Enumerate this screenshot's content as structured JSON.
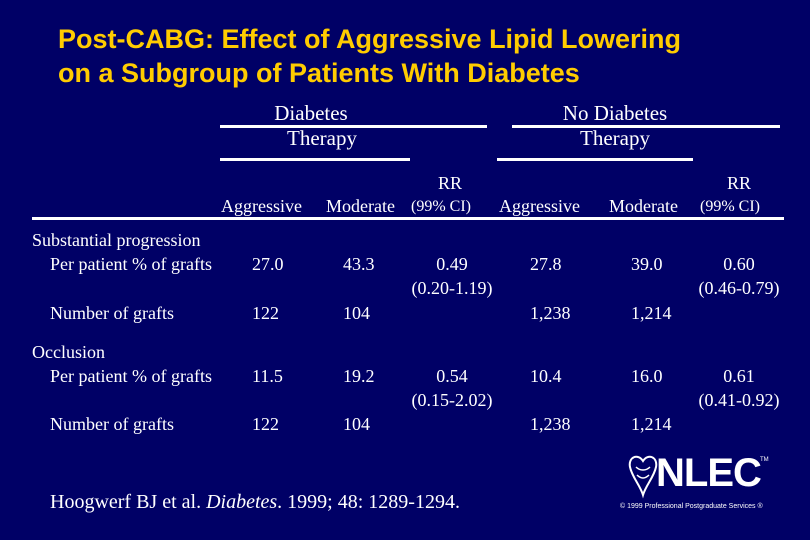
{
  "title": {
    "line1": "Post-CABG: Effect of Aggressive Lipid Lowering",
    "line2": "on a Subgroup of Patients With Diabetes"
  },
  "groups": {
    "diabetes": {
      "line1": "Diabetes",
      "line2": "Therapy"
    },
    "no_diabetes": {
      "line1": "No Diabetes",
      "line2": "Therapy"
    }
  },
  "columns": {
    "rr": "RR",
    "aggressive": "Aggressive",
    "moderate": "Moderate",
    "ci": "(99% CI)"
  },
  "sections": {
    "progression": "Substantial progression",
    "occlusion": "Occlusion"
  },
  "rows": [
    {
      "label": "Per patient % of grafts",
      "d_agg": "27.0",
      "d_mod": "43.3",
      "d_rr": "0.49",
      "d_ci": "(0.20-1.19)",
      "n_agg": "27.8",
      "n_mod": "39.0",
      "n_rr": "0.60",
      "n_ci": "(0.46-0.79)"
    },
    {
      "label": "Number of grafts",
      "d_agg": "122",
      "d_mod": "104",
      "n_agg": "1,238",
      "n_mod": "1,214"
    },
    {
      "label": "Per patient % of grafts",
      "d_agg": "11.5",
      "d_mod": "19.2",
      "d_rr": "0.54",
      "d_ci": "(0.15-2.02)",
      "n_agg": "10.4",
      "n_mod": "16.0",
      "n_rr": "0.61",
      "n_ci": "(0.41-0.92)"
    },
    {
      "label": "Number of grafts",
      "d_agg": "122",
      "d_mod": "104",
      "n_agg": "1,238",
      "n_mod": "1,214"
    }
  ],
  "citation": {
    "authors": "Hoogwerf BJ et al.",
    "journal": "Diabetes",
    "details": ". 1999; 48: 1289-1294."
  },
  "logo": {
    "text": "NLEC",
    "tm": "TM"
  },
  "copyright": "© 1999 Professional Postgraduate Services ®"
}
